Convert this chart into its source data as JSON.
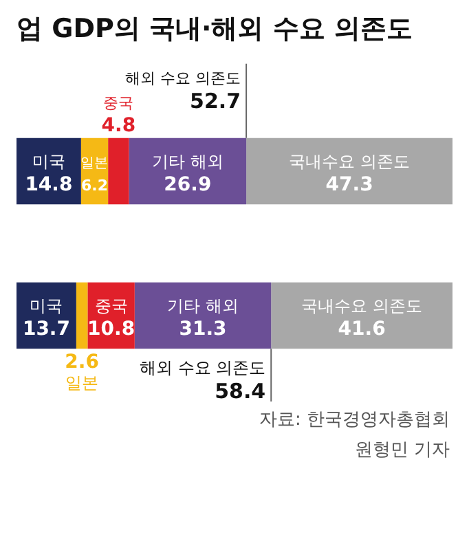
{
  "chart_data": {
    "type": "bar",
    "orientation": "horizontal",
    "stacked": true,
    "title": "업 GDP의 국내·해외 수요 의존도",
    "categories": [
      null,
      null
    ],
    "series": [
      {
        "name": "미국",
        "color": "#1f2a5c",
        "values": [
          14.8,
          13.7
        ]
      },
      {
        "name": "일본",
        "color": "#f5b915",
        "values": [
          6.2,
          2.6
        ]
      },
      {
        "name": "중국",
        "color": "#e0202a",
        "values": [
          4.8,
          10.8
        ]
      },
      {
        "name": "기타 해외",
        "color": "#6b4f96",
        "values": [
          26.9,
          31.3
        ]
      },
      {
        "name": "국내수요 의존도",
        "color": "#a8a8a8",
        "values": [
          47.3,
          41.6
        ]
      }
    ],
    "xlim": [
      0,
      100
    ],
    "legend": false,
    "data_labels": true,
    "annotations": [
      "해외 수요 의존도 52.7",
      "해외 수요 의존도 58.4",
      "자료: 한국경영자총협회",
      "원형민 기자"
    ]
  }
}
